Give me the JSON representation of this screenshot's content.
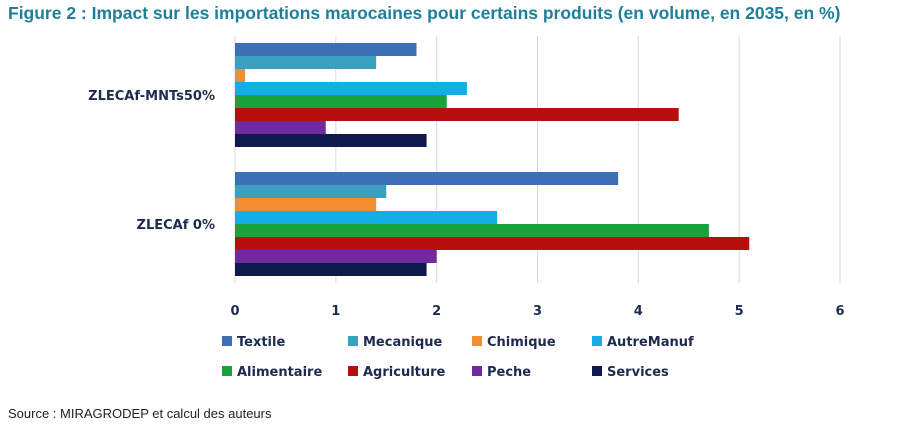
{
  "page": {
    "title": "Figure 2 : Impact sur les importations marocaines pour certains produits (en volume, en 2035, en %)",
    "source": "Source : MIRAGRODEP et calcul des auteurs"
  },
  "chart_data": {
    "type": "bar",
    "orientation": "horizontal",
    "title": "Figure 2 : Impact sur les importations marocaines pour certains produits (en volume, en 2035, en %)",
    "categories": [
      "ZLECAf-MNTs50%",
      "ZLECAf 0%"
    ],
    "xlim": [
      0,
      6
    ],
    "xticks": [
      "0",
      "1",
      "2",
      "3",
      "4",
      "5",
      "6"
    ],
    "grid": true,
    "legend_position": "bottom",
    "series": [
      {
        "name": "Textile",
        "color": "#3d6fb6",
        "values": [
          1.8,
          3.8
        ]
      },
      {
        "name": "Mecanique",
        "color": "#3aa0bd",
        "values": [
          1.4,
          1.5
        ]
      },
      {
        "name": "Chimique",
        "color": "#f28d32",
        "values": [
          0.1,
          1.4
        ]
      },
      {
        "name": "AutreManuf",
        "color": "#13aee6",
        "values": [
          2.3,
          2.6
        ]
      },
      {
        "name": "Alimentaire",
        "color": "#1aa33c",
        "values": [
          2.1,
          4.7
        ]
      },
      {
        "name": "Agriculture",
        "color": "#b70e0e",
        "values": [
          4.4,
          5.1
        ]
      },
      {
        "name": "Peche",
        "color": "#6f2b9e",
        "values": [
          0.9,
          2.0
        ]
      },
      {
        "name": "Services",
        "color": "#0e1a4c",
        "values": [
          1.9,
          1.9
        ]
      }
    ]
  }
}
